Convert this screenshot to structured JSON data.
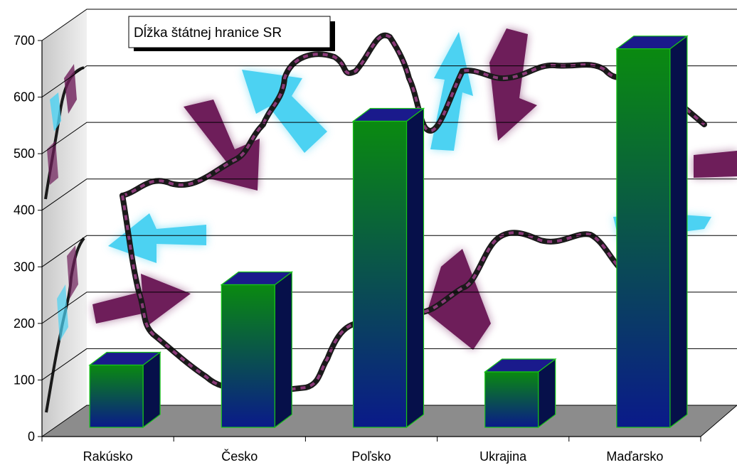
{
  "chart_data": {
    "type": "bar",
    "title": "Dĺžka štátnej hranice SR",
    "xlabel": "",
    "ylabel": "",
    "categories": [
      "Rakúsko",
      "Česko",
      "Poľsko",
      "Ukrajina",
      "Maďarsko"
    ],
    "values": [
      110,
      252,
      541,
      98,
      669
    ],
    "ylim": [
      0,
      700
    ],
    "yticks": [
      "0",
      "100",
      "200",
      "300",
      "400",
      "500",
      "600",
      "700"
    ],
    "grid": true,
    "legend": "none",
    "style": "3d-columns",
    "colors": {
      "bar_top": "#1a1a8c",
      "bar_front_top": "#0a8a10",
      "bar_front_bottom": "#0a1a8a",
      "bar_side": "#06104a",
      "bar_edge": "#18c418",
      "floor": "#8c8c8c",
      "wall_decoration": [
        "#6e1e5a",
        "#4cd2f2",
        "#1a1a1a"
      ]
    }
  }
}
